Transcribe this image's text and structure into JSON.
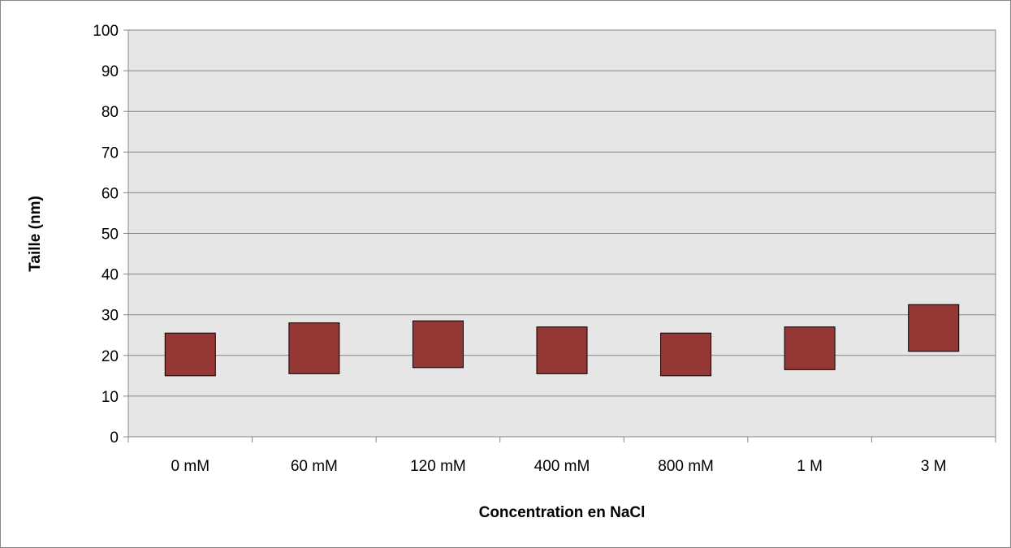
{
  "chart_data": {
    "type": "bar",
    "subtype": "floating-range",
    "categories": [
      "0 mM",
      "60 mM",
      "120 mM",
      "400 mM",
      "800 mM",
      "1 M",
      "3 M"
    ],
    "series": [
      {
        "low": [
          15,
          15.5,
          17,
          15.5,
          15,
          16.5,
          21
        ],
        "high": [
          25.5,
          28,
          28.5,
          27,
          25.5,
          27,
          32.5
        ]
      }
    ],
    "title": "",
    "xlabel": "Concentration en NaCl",
    "ylabel": "Taille (nm)",
    "ylim": [
      0,
      100
    ],
    "yticks": [
      0,
      10,
      20,
      30,
      40,
      50,
      60,
      70,
      80,
      90,
      100
    ],
    "grid": true,
    "legend": "none",
    "colors": {
      "bar_fill": "#953735",
      "bar_stroke": "#000000",
      "plot_bg": "#e6e6e6",
      "gridline": "#868686",
      "frame": "#868686"
    }
  }
}
